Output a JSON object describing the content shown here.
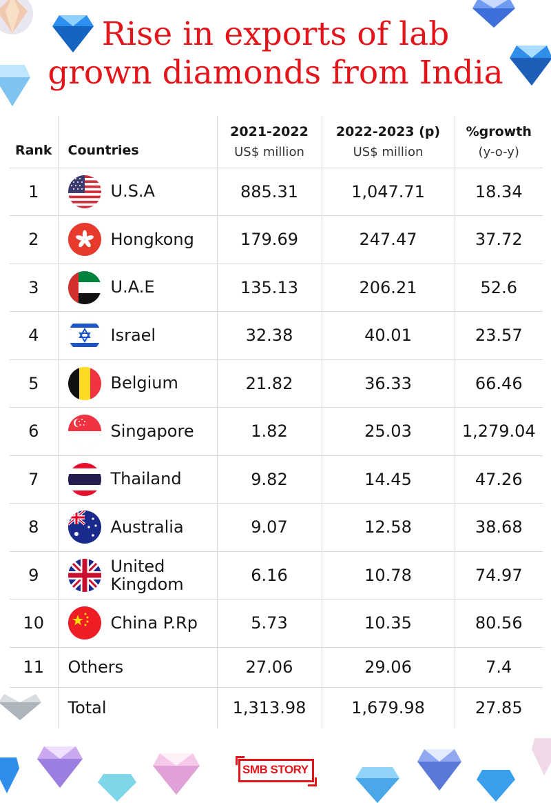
{
  "title": {
    "line1": "Rise in exports of lab",
    "line2": "grown diamonds from India"
  },
  "table": {
    "headers": {
      "rank": "Rank",
      "countries": "Countries",
      "y1": "2021-2022",
      "y1_unit": "US$ million",
      "y2": "2022-2023 (p)",
      "y2_unit": "US$ million",
      "growth": "%growth",
      "growth_unit": "(y-o-y)"
    },
    "rows": [
      {
        "rank": "1",
        "country": "U.S.A",
        "flag": "usa-flag-icon",
        "y1": "885.31",
        "y2": "1,047.71",
        "growth": "18.34"
      },
      {
        "rank": "2",
        "country": "Hongkong",
        "flag": "hongkong-flag-icon",
        "y1": "179.69",
        "y2": "247.47",
        "growth": "37.72"
      },
      {
        "rank": "3",
        "country": "U.A.E",
        "flag": "uae-flag-icon",
        "y1": "135.13",
        "y2": "206.21",
        "growth": "52.6"
      },
      {
        "rank": "4",
        "country": "Israel",
        "flag": "israel-flag-icon",
        "y1": "32.38",
        "y2": "40.01",
        "growth": "23.57"
      },
      {
        "rank": "5",
        "country": "Belgium",
        "flag": "belgium-flag-icon",
        "y1": "21.82",
        "y2": "36.33",
        "growth": "66.46"
      },
      {
        "rank": "6",
        "country": "Singapore",
        "flag": "singapore-flag-icon",
        "y1": "1.82",
        "y2": "25.03",
        "growth": "1,279.04"
      },
      {
        "rank": "7",
        "country": "Thailand",
        "flag": "thailand-flag-icon",
        "y1": "9.82",
        "y2": "14.45",
        "growth": "47.26"
      },
      {
        "rank": "8",
        "country": "Australia",
        "flag": "australia-flag-icon",
        "y1": "9.07",
        "y2": "12.58",
        "growth": "38.68"
      },
      {
        "rank": "9",
        "country_l1": "United",
        "country_l2": "Kingdom",
        "flag": "uk-flag-icon",
        "y1": "6.16",
        "y2": "10.78",
        "growth": "74.97"
      },
      {
        "rank": "10",
        "country": "China P.Rp",
        "flag": "china-flag-icon",
        "y1": "5.73",
        "y2": "10.35",
        "growth": "80.56"
      },
      {
        "rank": "11",
        "country": "Others",
        "y1": "27.06",
        "y2": "29.06",
        "growth": "7.4"
      }
    ],
    "total": {
      "label": "Total",
      "y1": "1,313.98",
      "y2": "1,679.98",
      "growth": "27.85"
    }
  },
  "logo": {
    "text": "SMB STORY",
    "icon": "smb-story-logo"
  },
  "colors": {
    "title": "#e3151b",
    "brand": "#e3151b",
    "grid": "#d8d8d8"
  },
  "decorations": [
    "diamond-icon"
  ]
}
